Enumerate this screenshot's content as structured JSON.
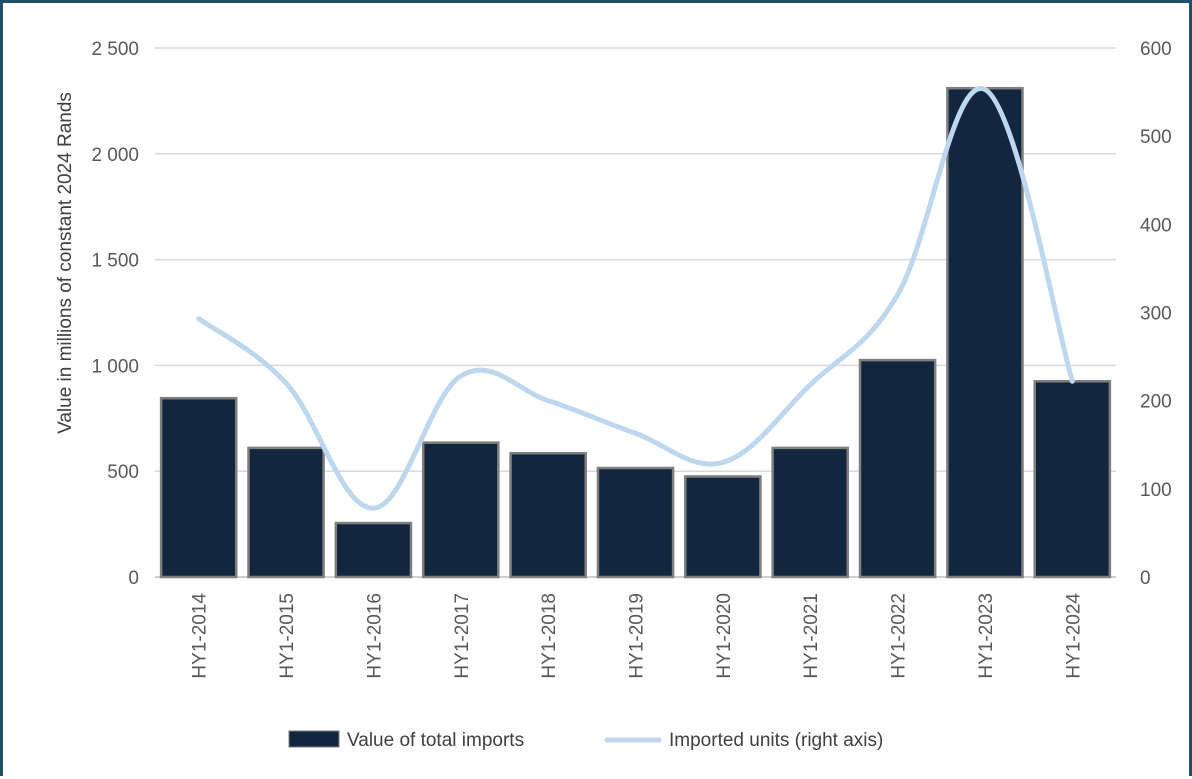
{
  "chart_data": {
    "type": "bar",
    "categories": [
      "HY1-2014",
      "HY1-2015",
      "HY1-2016",
      "HY1-2017",
      "HY1-2018",
      "HY1-2019",
      "HY1-2020",
      "HY1-2021",
      "HY1-2022",
      "HY1-2023",
      "HY1-2024"
    ],
    "series": [
      {
        "name": "Value of total imports",
        "type": "bar",
        "axis": "left",
        "color": "#12263e",
        "values": [
          845,
          610,
          255,
          635,
          585,
          515,
          475,
          610,
          1025,
          2310,
          925
        ]
      },
      {
        "name": "Imported units (right axis)",
        "type": "line",
        "axis": "right",
        "color": "#bdd7ee",
        "smooth": true,
        "values": [
          293,
          220,
          78,
          228,
          200,
          163,
          130,
          218,
          320,
          553,
          222
        ]
      }
    ],
    "ylabel": "Value in millions of constant 2024 Rands",
    "ylim": [
      0,
      2500
    ],
    "y_ticks": [
      "0",
      "500",
      "1 000",
      "1 500",
      "2 000",
      "2 500"
    ],
    "y2lim": [
      0,
      600
    ],
    "y2_ticks": [
      "0",
      "100",
      "200",
      "300",
      "400",
      "500",
      "600"
    ],
    "grid": true,
    "legend_position": "bottom"
  }
}
